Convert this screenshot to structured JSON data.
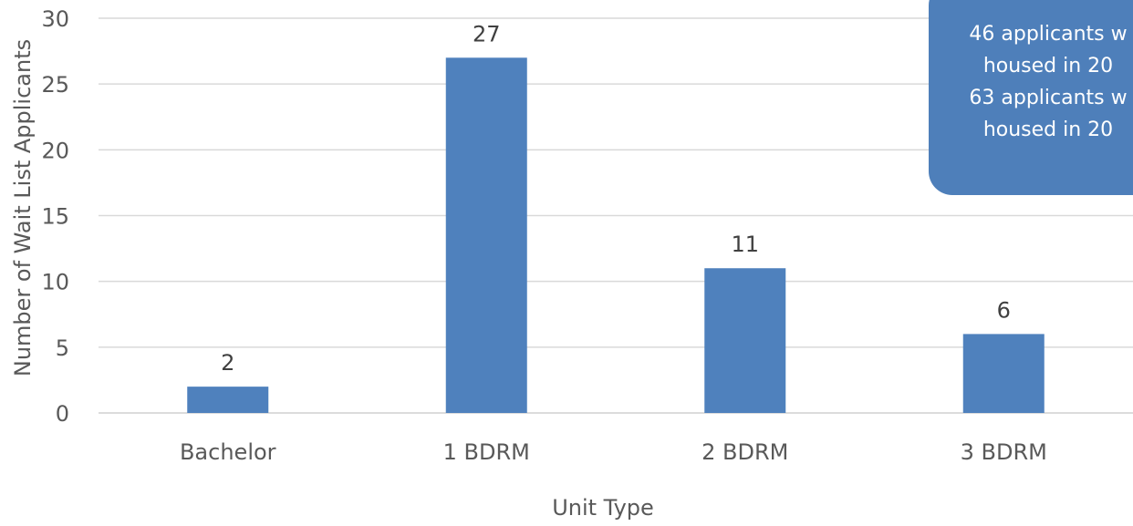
{
  "chart_data": {
    "type": "bar",
    "categories": [
      "Bachelor",
      "1 BDRM",
      "2 BDRM",
      "3 BDRM"
    ],
    "values": [
      2,
      27,
      11,
      6
    ],
    "data_labels": [
      "2",
      "27",
      "11",
      "6"
    ],
    "xlabel": "Unit Type",
    "ylabel": "Number of Wait List Applicants",
    "ylim": [
      0,
      30
    ],
    "yticks": [
      "0",
      "5",
      "10",
      "15",
      "20",
      "25",
      "30"
    ],
    "grid": true,
    "bar_color": "#4f81bd",
    "annotation": {
      "lines": [
        "46 applicants  w",
        "housed in 20",
        "63 applicants w",
        "housed in 20"
      ],
      "color": "#4e7fba"
    }
  }
}
